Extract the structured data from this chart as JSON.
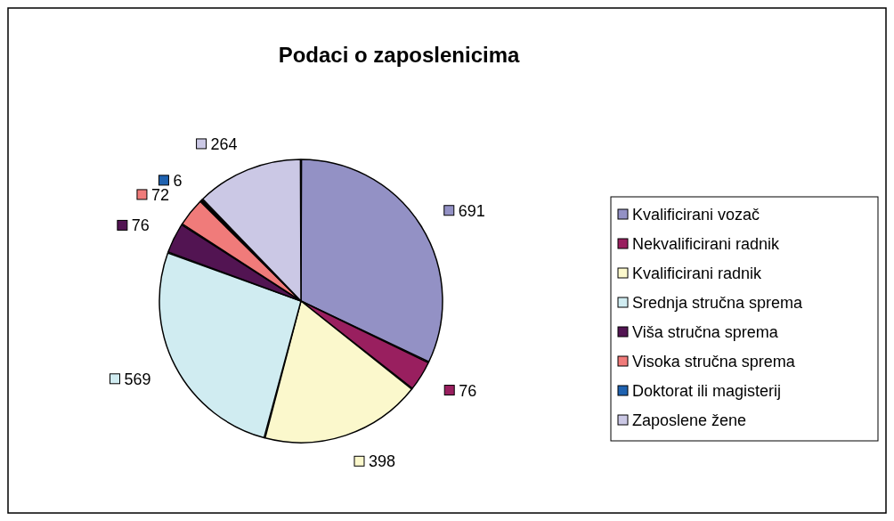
{
  "chart_data": {
    "type": "pie",
    "title": "Podaci o zaposlenicima",
    "categories": [
      "Kvalificirani vozač",
      "Nekvalificirani radnik",
      "Kvalificirani radnik",
      "Srednja stručna sprema",
      "Viša stručna sprema",
      "Visoka stručna sprema",
      "Doktorat ili magisterij",
      "Zaposlene žene"
    ],
    "values": [
      691,
      76,
      398,
      569,
      76,
      72,
      6,
      264
    ],
    "colors": [
      "#9391c5",
      "#991f5f",
      "#fbf8cc",
      "#d0ecf1",
      "#521452",
      "#f07b7a",
      "#1f62b0",
      "#cbc8e5"
    ],
    "data_labels": true,
    "legend": "right"
  }
}
